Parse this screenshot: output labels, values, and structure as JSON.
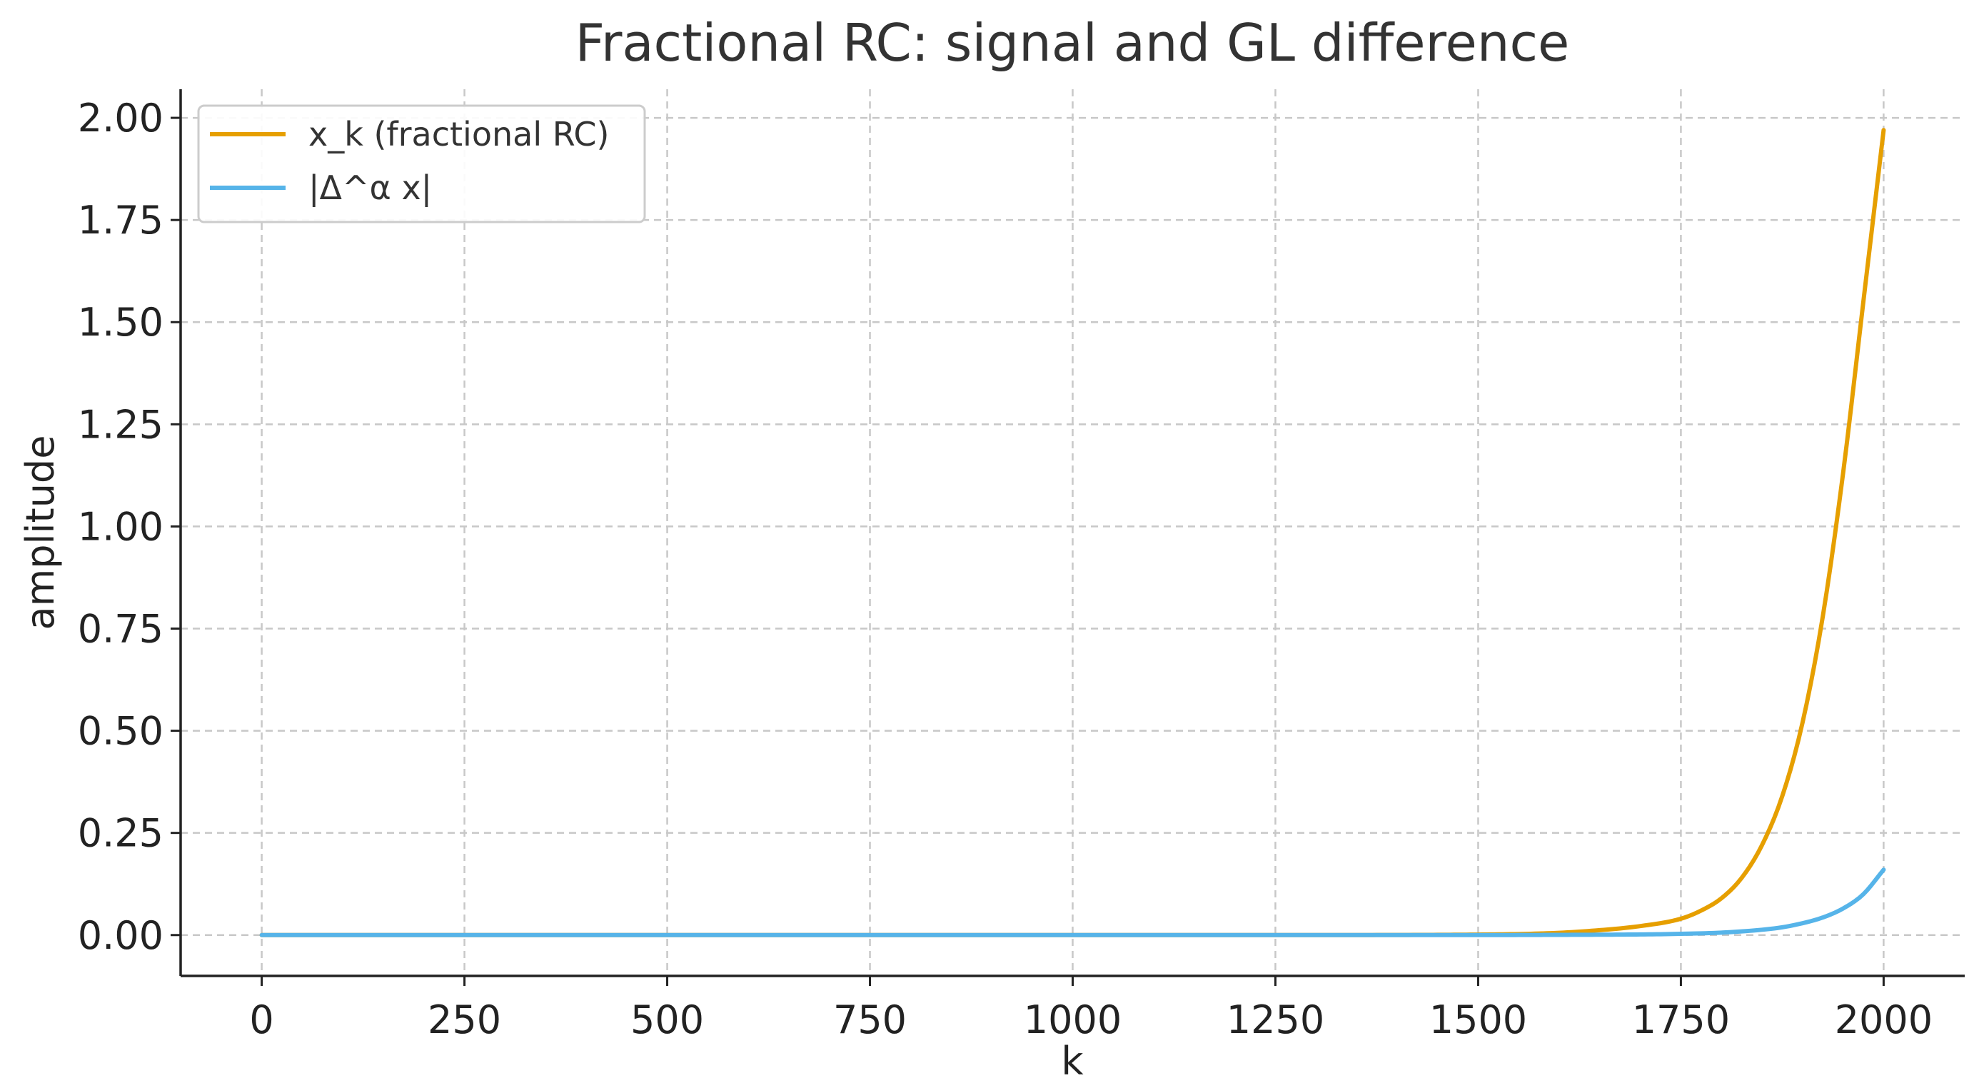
{
  "chart_data": {
    "type": "line",
    "title": "Fractional RC: signal and GL difference",
    "xlabel": "k",
    "ylabel": "amplitude",
    "xlim": [
      -100,
      2100
    ],
    "ylim": [
      -0.1,
      2.07
    ],
    "xticks": [
      0,
      250,
      500,
      750,
      1000,
      1250,
      1500,
      1750,
      2000
    ],
    "xtick_labels": [
      "0",
      "250",
      "500",
      "750",
      "1000",
      "1250",
      "1500",
      "1750",
      "2000"
    ],
    "yticks": [
      0,
      0.25,
      0.5,
      0.75,
      1.0,
      1.25,
      1.5,
      1.75,
      2.0
    ],
    "ytick_labels": [
      "0.00",
      "0.25",
      "0.50",
      "0.75",
      "1.00",
      "1.25",
      "1.50",
      "1.75",
      "2.00"
    ],
    "grid": true,
    "legend_position": "top-left",
    "series": [
      {
        "name": "x_k (fractional RC)",
        "color": "#E69F00",
        "x": [
          0,
          250,
          500,
          750,
          1000,
          1250,
          1500,
          1550,
          1600,
          1650,
          1700,
          1750,
          1775,
          1800,
          1825,
          1850,
          1875,
          1900,
          1925,
          1950,
          1975,
          2000
        ],
        "y": [
          0.0,
          0.0,
          0.0,
          0.0,
          0.0,
          0.0,
          0.0012,
          0.0025,
          0.0055,
          0.012,
          0.022,
          0.04,
          0.06,
          0.09,
          0.14,
          0.22,
          0.34,
          0.52,
          0.78,
          1.13,
          1.55,
          1.97
        ]
      },
      {
        "name": "|Δ^α x|",
        "color": "#56B4E9",
        "x": [
          0,
          250,
          500,
          750,
          1000,
          1250,
          1500,
          1600,
          1700,
          1750,
          1800,
          1850,
          1875,
          1900,
          1925,
          1950,
          1975,
          2000
        ],
        "y": [
          0.0,
          0.0,
          0.0,
          0.0,
          0.0,
          0.0,
          0.0,
          0.0005,
          0.0015,
          0.003,
          0.006,
          0.013,
          0.019,
          0.029,
          0.043,
          0.065,
          0.1,
          0.16
        ]
      }
    ]
  }
}
